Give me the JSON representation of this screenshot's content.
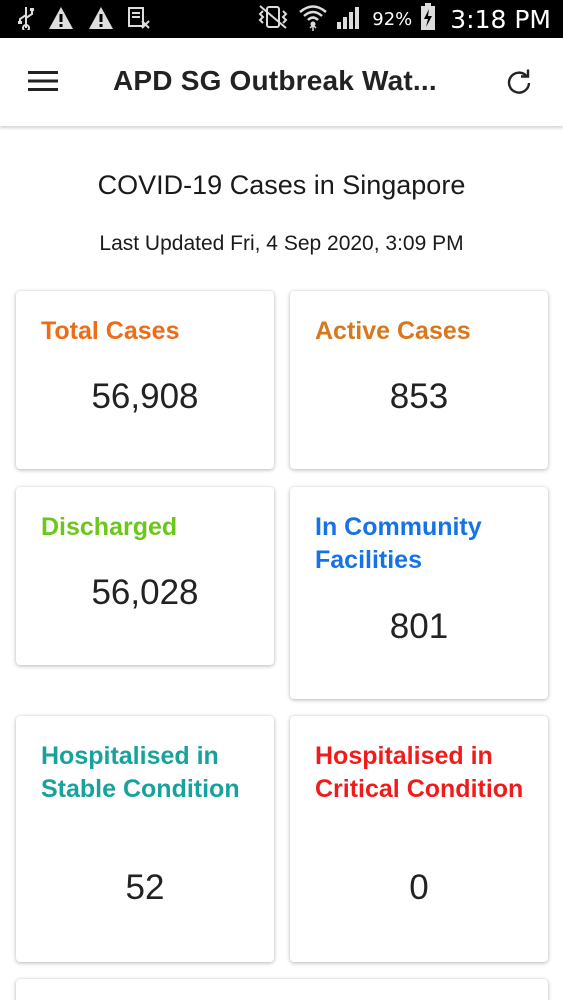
{
  "status_bar": {
    "icons_left": [
      "usb-icon",
      "warning-icon",
      "warning-icon",
      "screenshot-icon"
    ],
    "icons_right": [
      "vibrate-icon",
      "wifi-icon",
      "signal-icon"
    ],
    "battery_percent": "92%",
    "time": "3:18 PM"
  },
  "app_bar": {
    "menu_icon": "menu-icon",
    "title": "APD SG Outbreak Wat...",
    "refresh_icon": "refresh-icon"
  },
  "main": {
    "title": "COVID-19 Cases in Singapore",
    "last_updated": "Last Updated Fri, 4 Sep 2020, 3:09 PM",
    "cards": [
      {
        "label": "Total Cases",
        "value": "56,908",
        "color": "#ef6c17"
      },
      {
        "label": "Active Cases",
        "value": "853",
        "color": "#d9771c"
      },
      {
        "label": "Discharged",
        "value": "56,028",
        "color": "#6bc81a"
      },
      {
        "label": "In Community Facilities",
        "value": "801",
        "color": "#1673e6"
      },
      {
        "label": "Hospitalised in Stable Condition",
        "value": "52",
        "color": "#17a29c"
      },
      {
        "label": "Hospitalised in Critical Condition",
        "value": "0",
        "color": "#ee1c1c"
      }
    ]
  }
}
